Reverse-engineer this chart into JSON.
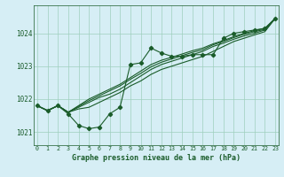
{
  "title": "",
  "xlabel": "Graphe pression niveau de la mer (hPa)",
  "ylabel": "",
  "background_color": "#d6eef5",
  "grid_color": "#9ecfbe",
  "line_color": "#1a5c2a",
  "x_values": [
    0,
    1,
    2,
    3,
    4,
    5,
    6,
    7,
    8,
    9,
    10,
    11,
    12,
    13,
    14,
    15,
    16,
    17,
    18,
    19,
    20,
    21,
    22,
    23
  ],
  "series_main": [
    1021.8,
    1021.65,
    1021.8,
    1021.55,
    1021.2,
    1021.1,
    1021.15,
    1021.55,
    1021.75,
    1023.05,
    1023.1,
    1023.55,
    1023.4,
    1023.3,
    1023.3,
    1023.35,
    1023.35,
    1023.35,
    1023.85,
    1024.0,
    1024.05,
    1024.1,
    1024.15,
    1024.45
  ],
  "series_smooth1": [
    1021.8,
    1021.65,
    1021.8,
    1021.6,
    1021.7,
    1021.75,
    1021.9,
    1022.05,
    1022.2,
    1022.4,
    1022.55,
    1022.75,
    1022.9,
    1023.0,
    1023.1,
    1023.2,
    1023.3,
    1023.45,
    1023.6,
    1023.75,
    1023.85,
    1023.95,
    1024.05,
    1024.45
  ],
  "series_smooth2": [
    1021.8,
    1021.65,
    1021.8,
    1021.6,
    1021.75,
    1021.9,
    1022.05,
    1022.15,
    1022.3,
    1022.5,
    1022.7,
    1022.9,
    1023.05,
    1023.15,
    1023.25,
    1023.35,
    1023.45,
    1023.6,
    1023.7,
    1023.82,
    1023.92,
    1024.0,
    1024.1,
    1024.45
  ],
  "series_smooth3": [
    1021.8,
    1021.65,
    1021.8,
    1021.6,
    1021.78,
    1021.95,
    1022.1,
    1022.25,
    1022.4,
    1022.6,
    1022.78,
    1022.98,
    1023.12,
    1023.22,
    1023.32,
    1023.42,
    1023.5,
    1023.65,
    1023.75,
    1023.87,
    1023.97,
    1024.05,
    1024.12,
    1024.45
  ],
  "series_smooth4": [
    1021.8,
    1021.65,
    1021.8,
    1021.6,
    1021.8,
    1022.0,
    1022.15,
    1022.3,
    1022.45,
    1022.65,
    1022.85,
    1023.05,
    1023.18,
    1023.27,
    1023.37,
    1023.47,
    1023.55,
    1023.68,
    1023.78,
    1023.9,
    1024.0,
    1024.08,
    1024.15,
    1024.45
  ],
  "ylim": [
    1020.6,
    1024.85
  ],
  "yticks": [
    1021,
    1022,
    1023,
    1024
  ],
  "xlim": [
    -0.3,
    23.3
  ],
  "xticks": [
    0,
    1,
    2,
    3,
    4,
    5,
    6,
    7,
    8,
    9,
    10,
    11,
    12,
    13,
    14,
    15,
    16,
    17,
    18,
    19,
    20,
    21,
    22,
    23
  ],
  "xtick_labels": [
    "0",
    "1",
    "2",
    "3",
    "4",
    "5",
    "6",
    "7",
    "8",
    "9",
    "10",
    "11",
    "12",
    "13",
    "14",
    "15",
    "16",
    "17",
    "18",
    "19",
    "20",
    "21",
    "22",
    "23"
  ],
  "marker": "D",
  "markersize": 2.2,
  "linewidth": 0.8
}
